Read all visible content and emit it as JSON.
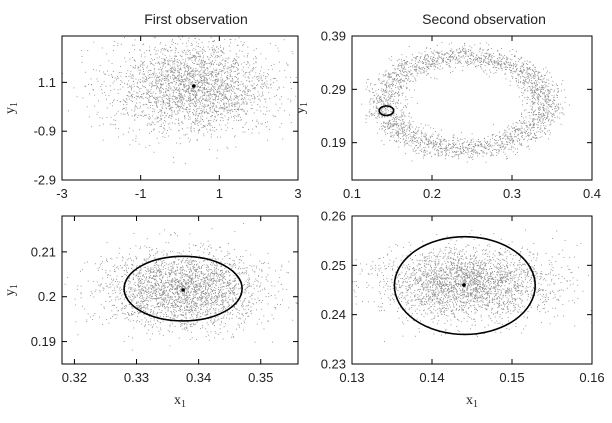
{
  "titles": {
    "first": "First observation",
    "second": "Second observation"
  },
  "axis_labels": {
    "x": "x",
    "x_sub": "1",
    "y": "y",
    "y_sub": "1"
  },
  "chart_data": [
    {
      "type": "scatter",
      "title": "First observation",
      "xlabel": "x1",
      "ylabel": "y1",
      "xlim": [
        -3,
        3
      ],
      "ylim": [
        -2.9,
        3.0
      ],
      "xticks": [
        -3,
        -1,
        1,
        3
      ],
      "yticks": [
        -2.9,
        -0.9,
        1.1
      ],
      "xtick_labels": [
        "-3",
        "-1",
        "1",
        "3"
      ],
      "ytick_labels": [
        "-2.9",
        "-0.9",
        "1.1"
      ],
      "cloud": {
        "shape": "gaussian",
        "center": [
          0.35,
          0.9
        ],
        "spread": [
          1.05,
          0.95
        ],
        "count": 2600
      },
      "marker": [
        0.35,
        0.95
      ],
      "ellipses": []
    },
    {
      "type": "scatter",
      "title": "Second observation",
      "xlabel": "x1",
      "ylabel": "y1",
      "xlim": [
        0.1,
        0.4
      ],
      "ylim": [
        0.12,
        0.39
      ],
      "xticks": [
        0.1,
        0.2,
        0.3,
        0.4
      ],
      "yticks": [
        0.19,
        0.29,
        0.39
      ],
      "xtick_labels": [
        "0.1",
        "0.2",
        "0.3",
        "0.4"
      ],
      "ytick_labels": [
        "0.19",
        "0.29",
        "0.39"
      ],
      "cloud": {
        "shape": "ring",
        "center": [
          0.24,
          0.265
        ],
        "radii": [
          0.1,
          0.088
        ],
        "ring_width": 0.022,
        "count": 2600
      },
      "marker": null,
      "ellipses": [
        {
          "center": [
            0.143,
            0.25
          ],
          "radii": [
            0.009,
            0.009
          ]
        }
      ]
    },
    {
      "type": "scatter",
      "title": "",
      "xlabel": "x1",
      "ylabel": "y1",
      "xlim": [
        0.318,
        0.356
      ],
      "ylim": [
        0.185,
        0.218
      ],
      "xticks": [
        0.32,
        0.33,
        0.34,
        0.35
      ],
      "yticks": [
        0.19,
        0.2,
        0.21
      ],
      "xtick_labels": [
        "0.32",
        "0.33",
        "0.34",
        "0.35"
      ],
      "ytick_labels": [
        "0.19",
        "0.2",
        "0.21"
      ],
      "cloud": {
        "shape": "gaussian",
        "center": [
          0.3375,
          0.2015
        ],
        "spread": [
          0.0065,
          0.0042
        ],
        "count": 2600
      },
      "marker": [
        0.3375,
        0.2015
      ],
      "ellipses": [
        {
          "center": [
            0.3375,
            0.2018
          ],
          "radii": [
            0.0095,
            0.0072
          ]
        }
      ]
    },
    {
      "type": "scatter",
      "title": "",
      "xlabel": "x1",
      "ylabel": "y1",
      "xlim": [
        0.13,
        0.16
      ],
      "ylim": [
        0.23,
        0.26
      ],
      "xticks": [
        0.13,
        0.14,
        0.15,
        0.16
      ],
      "yticks": [
        0.23,
        0.24,
        0.25,
        0.26
      ],
      "xtick_labels": [
        "0.13",
        "0.14",
        "0.15",
        "0.16"
      ],
      "ytick_labels": [
        "0.23",
        "0.24",
        "0.25",
        "0.26"
      ],
      "cloud": {
        "shape": "gaussian",
        "center": [
          0.144,
          0.2462
        ],
        "spread": [
          0.0055,
          0.0036
        ],
        "count": 2600
      },
      "marker": [
        0.144,
        0.246
      ],
      "ellipses": [
        {
          "center": [
            0.1441,
            0.2459
          ],
          "radii": [
            0.0088,
            0.0099
          ]
        }
      ]
    }
  ]
}
